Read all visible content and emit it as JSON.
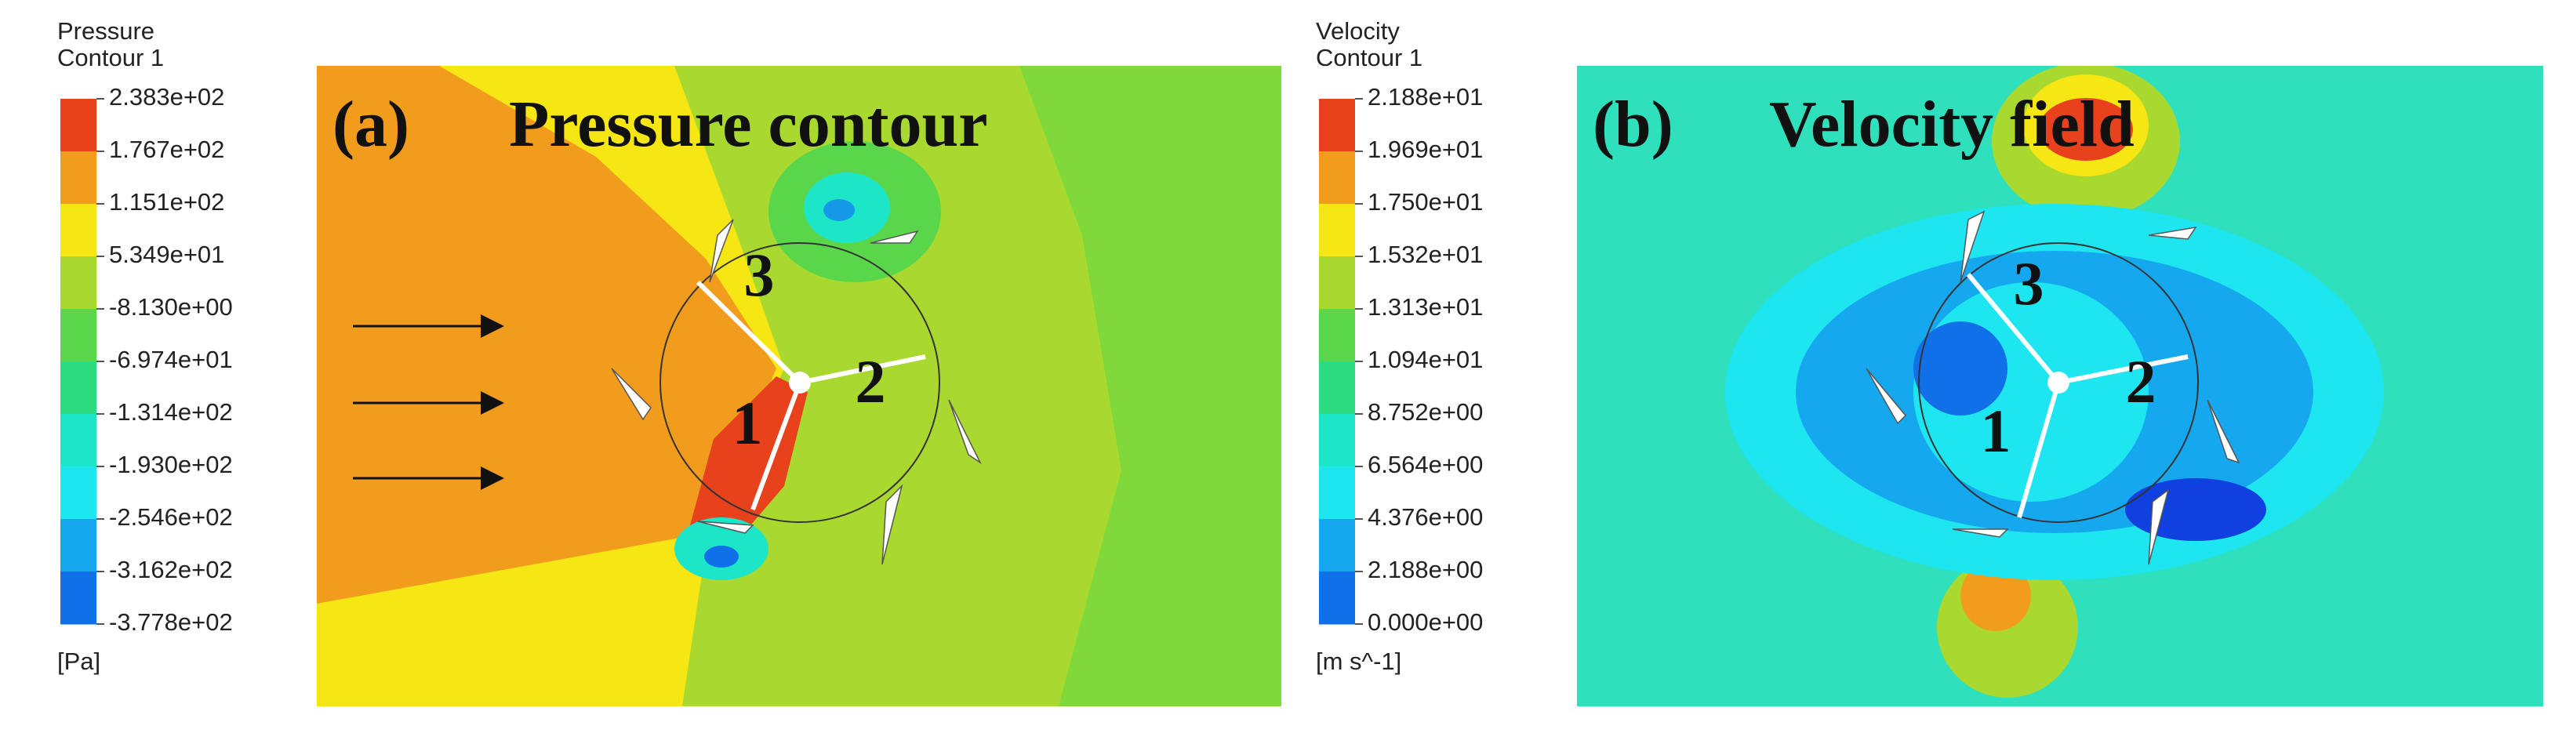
{
  "panels": [
    {
      "legend": {
        "title": [
          "Pressure",
          "Contour 1"
        ],
        "levels": [
          "2.383e+02",
          "1.767e+02",
          "1.151e+02",
          "5.349e+01",
          "-8.130e+00",
          "-6.974e+01",
          "-1.314e+02",
          "-1.930e+02",
          "-2.546e+02",
          "-3.162e+02",
          "-3.778e+02"
        ],
        "unit": "[Pa]"
      },
      "label": "(a)",
      "heading": "Pressure contour",
      "blades": [
        "1",
        "2",
        "3"
      ]
    },
    {
      "legend": {
        "title": [
          "Velocity",
          "Contour 1"
        ],
        "levels": [
          "2.188e+01",
          "1.969e+01",
          "1.750e+01",
          "1.532e+01",
          "1.313e+01",
          "1.094e+01",
          "8.752e+00",
          "6.564e+00",
          "4.376e+00",
          "2.188e+00",
          "0.000e+00"
        ],
        "unit": "[m s^-1]"
      },
      "label": "(b)",
      "heading": "Velocity field",
      "blades": [
        "1",
        "2",
        "3"
      ]
    }
  ]
}
